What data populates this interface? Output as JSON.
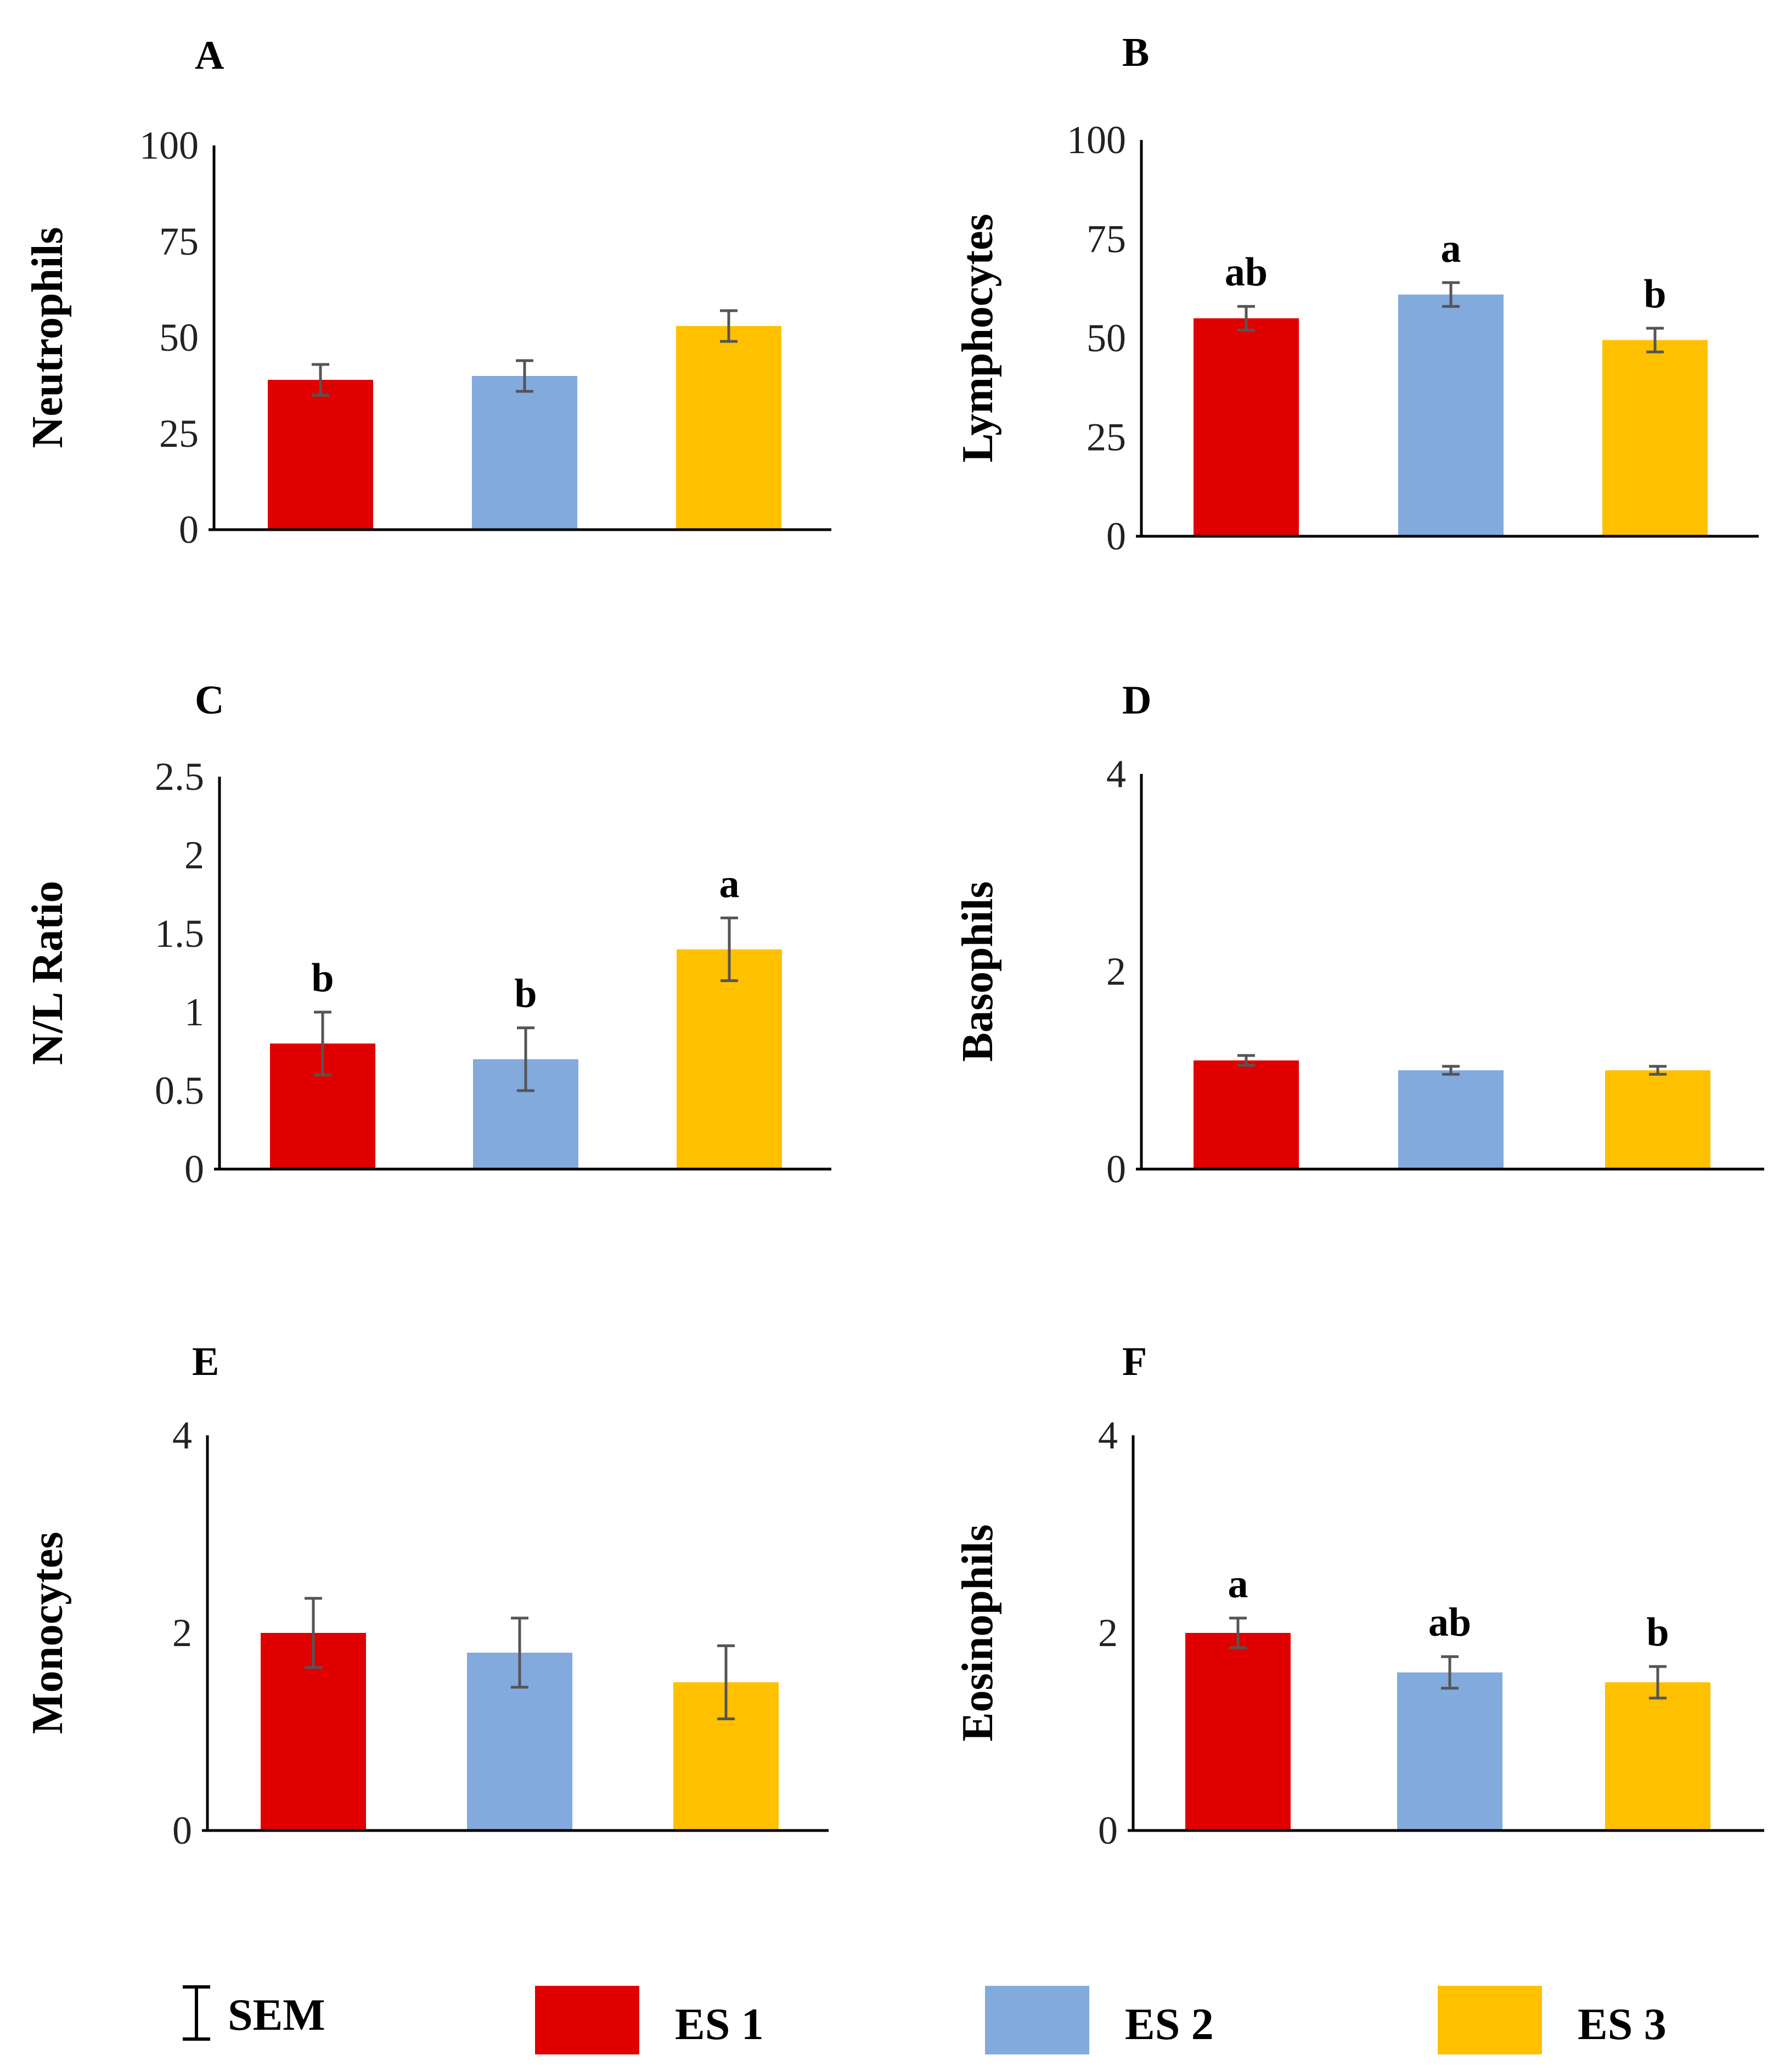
{
  "chart_data": [
    {
      "panel": "A",
      "type": "bar",
      "ylabel": "Neutrophils",
      "categories": [
        "ES 1",
        "ES 2",
        "ES 3"
      ],
      "values": [
        39,
        40,
        53
      ],
      "errors": [
        4,
        4,
        4
      ],
      "significance": [
        "",
        "",
        ""
      ],
      "ylim": [
        0,
        100
      ],
      "yticks": [
        "0",
        "25",
        "50",
        "75",
        "100"
      ]
    },
    {
      "panel": "B",
      "type": "bar",
      "ylabel": "Lymphocytes",
      "categories": [
        "ES 1",
        "ES 2",
        "ES 3"
      ],
      "values": [
        55,
        61,
        49.5
      ],
      "errors": [
        3,
        3,
        3
      ],
      "significance": [
        "ab",
        "a",
        "b"
      ],
      "ylim": [
        0,
        100
      ],
      "yticks": [
        "0",
        "25",
        "50",
        "75",
        "100"
      ]
    },
    {
      "panel": "C",
      "type": "bar",
      "ylabel": "N/L Ratio",
      "categories": [
        "ES 1",
        "ES 2",
        "ES 3"
      ],
      "values": [
        0.8,
        0.7,
        1.4
      ],
      "errors": [
        0.2,
        0.2,
        0.2
      ],
      "significance": [
        "b",
        "b",
        "a"
      ],
      "ylim": [
        0,
        2.5
      ],
      "yticks": [
        "0",
        "0.5",
        "1",
        "1.5",
        "2",
        "2.5"
      ]
    },
    {
      "panel": "D",
      "type": "bar",
      "ylabel": "Basophils",
      "categories": [
        "ES 1",
        "ES 2",
        "ES 3"
      ],
      "values": [
        1.1,
        1.0,
        1.0
      ],
      "errors": [
        0.05,
        0.04,
        0.04
      ],
      "significance": [
        "",
        "",
        ""
      ],
      "ylim": [
        0,
        4
      ],
      "yticks": [
        "0",
        "2",
        "4"
      ]
    },
    {
      "panel": "E",
      "type": "bar",
      "ylabel": "Monocytes",
      "categories": [
        "ES 1",
        "ES 2",
        "ES 3"
      ],
      "values": [
        2.0,
        1.8,
        1.5
      ],
      "errors": [
        0.35,
        0.35,
        0.37
      ],
      "significance": [
        "",
        "",
        ""
      ],
      "ylim": [
        0,
        4
      ],
      "yticks": [
        "0",
        "2",
        "4"
      ]
    },
    {
      "panel": "F",
      "type": "bar",
      "ylabel": "Eosinophils",
      "categories": [
        "ES 1",
        "ES 2",
        "ES 3"
      ],
      "values": [
        2.0,
        1.6,
        1.5
      ],
      "errors": [
        0.15,
        0.16,
        0.16
      ],
      "significance": [
        "a",
        "ab",
        "b"
      ],
      "ylim": [
        0,
        4
      ],
      "yticks": [
        "0",
        "2",
        "4"
      ]
    }
  ],
  "legend": {
    "sem_label": "SEM",
    "items": [
      {
        "label": "ES 1",
        "color": "#e00000"
      },
      {
        "label": "ES 2",
        "color": "#82aadd"
      },
      {
        "label": "ES 3",
        "color": "#ffc000"
      }
    ]
  },
  "colors": {
    "bars": [
      "#e00000",
      "#82aadd",
      "#ffc000"
    ],
    "error_bar": "#555555",
    "axis": "#000000"
  }
}
